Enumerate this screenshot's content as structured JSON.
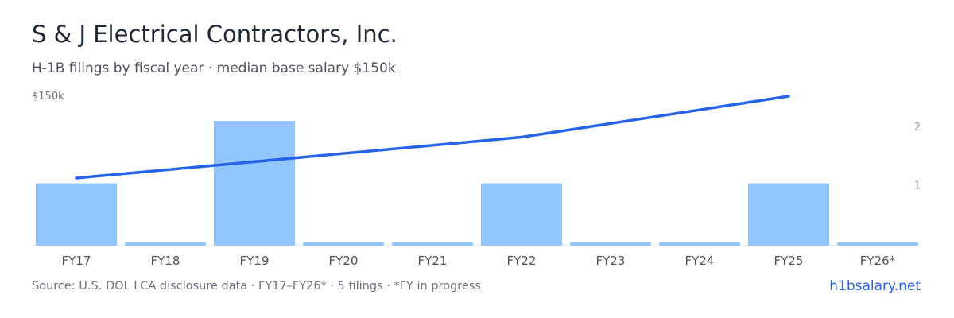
{
  "title": "S & J Electrical Contractors, Inc.",
  "subtitle": "H-1B filings by fiscal year · median base salary $150k",
  "footer": {
    "source": "Source: U.S. DOL LCA disclosure data · FY17–FY26* · 5 filings · *FY in progress",
    "brand": "h1bsalary.net"
  },
  "colors": {
    "bar": "#93c5fd",
    "line": "#2563eb",
    "axis_text": "#6b7280",
    "right_axis_text": "#9ca3af",
    "baseline": "#d1d5db",
    "brand": "#2563eb"
  },
  "chart_data": {
    "type": "bar",
    "categories": [
      "FY17",
      "FY18",
      "FY19",
      "FY20",
      "FY21",
      "FY22",
      "FY23",
      "FY24",
      "FY25",
      "FY26*"
    ],
    "series": [
      {
        "type": "bar",
        "axis": "right",
        "values": [
          1,
          0,
          2,
          0,
          0,
          1,
          0,
          0,
          1,
          0
        ]
      },
      {
        "type": "line",
        "axis": "left",
        "values": [
          null,
          null,
          null,
          null,
          null,
          null,
          null,
          null,
          null,
          null
        ],
        "points": [
          {
            "category": "FY17",
            "value": 112
          },
          {
            "category": "FY22",
            "value": 131
          },
          {
            "category": "FY25",
            "value": 150
          }
        ]
      }
    ],
    "left_axis": {
      "ticks": [
        {
          "value": 150,
          "label": "$150k"
        }
      ]
    },
    "right_axis": {
      "ylim": [
        0,
        2
      ],
      "ticks": [
        {
          "value": 1,
          "label": "1"
        },
        {
          "value": 2,
          "label": "2"
        }
      ]
    },
    "grid": false,
    "legend": "none"
  }
}
